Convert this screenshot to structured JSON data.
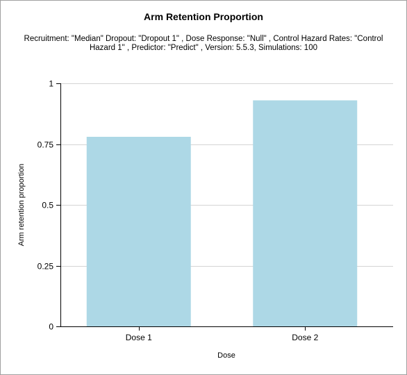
{
  "chart_data": {
    "type": "bar",
    "title": "Arm Retention Proportion",
    "subtitle": "Recruitment: \"Median\" Dropout: \"Dropout 1\" , Dose Response: \"Null\" , Control Hazard Rates: \"Control Hazard 1\" , Predictor: \"Predict\" , Version: 5.5.3, Simulations: 100",
    "xlabel": "Dose",
    "ylabel": "Arm retention proportion",
    "categories": [
      "Dose 1",
      "Dose 2"
    ],
    "values": [
      0.78,
      0.93
    ],
    "ylim": [
      0,
      1
    ],
    "yticks": [
      0,
      0.25,
      0.5,
      0.75,
      1
    ],
    "ytick_labels": [
      "0",
      "0.25",
      "0.5",
      "0.75",
      "1"
    ],
    "grid": true,
    "bar_color": "#add8e6",
    "grid_color": "#d3d3d3"
  }
}
